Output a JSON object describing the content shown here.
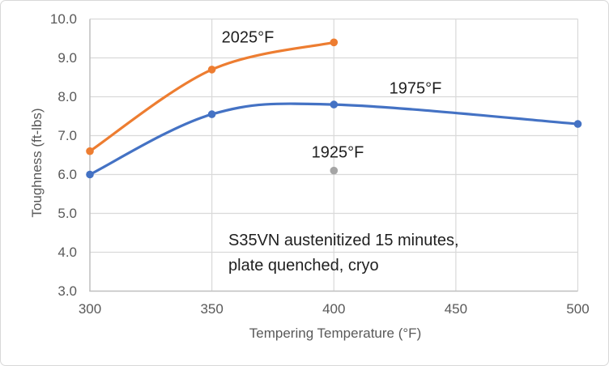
{
  "chart_data": {
    "type": "line",
    "title": "",
    "xlabel": "Tempering Temperature (°F)",
    "ylabel": "Toughness (ft-lbs)",
    "xlim": [
      300,
      500
    ],
    "ylim": [
      3.0,
      10.0
    ],
    "x_tick_labels": [
      "300",
      "350",
      "400",
      "450",
      "500"
    ],
    "y_tick_labels": [
      "10.0",
      "9.0",
      "8.0",
      "7.0",
      "6.0",
      "5.0",
      "4.0",
      "3.0"
    ],
    "grid": true,
    "legend_position": "none",
    "series": [
      {
        "name": "2025°F",
        "color": "#ED7D31",
        "smooth": true,
        "points": [
          [
            300,
            6.6
          ],
          [
            350,
            8.7
          ],
          [
            400,
            9.4
          ]
        ]
      },
      {
        "name": "1975°F",
        "color": "#4472C4",
        "smooth": true,
        "points": [
          [
            300,
            6.0
          ],
          [
            350,
            7.55
          ],
          [
            400,
            7.8
          ],
          [
            500,
            7.3
          ]
        ]
      },
      {
        "name": "1925°F",
        "color": "#A5A5A5",
        "smooth": false,
        "points": [
          [
            400,
            6.1
          ]
        ]
      }
    ],
    "annotation": {
      "line1": "S35VN austenitized 15 minutes,",
      "line2": "plate quenched, cryo"
    },
    "style": {
      "gridline_color": "#D9D9D9",
      "axis_line_color": "#BFBFBF",
      "tick_text_color": "#595959",
      "label_text_color": "#1F1F1F"
    }
  }
}
